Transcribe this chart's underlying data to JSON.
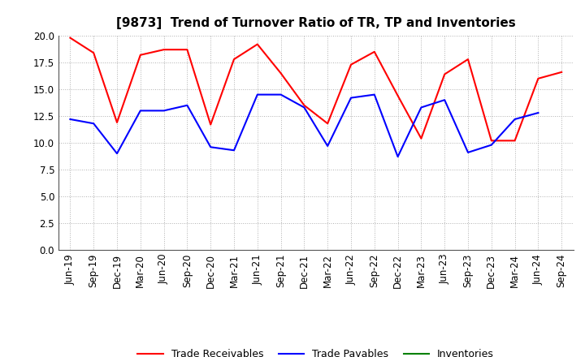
{
  "title": "[9873]  Trend of Turnover Ratio of TR, TP and Inventories",
  "x_labels": [
    "Jun-19",
    "Sep-19",
    "Dec-19",
    "Mar-20",
    "Jun-20",
    "Sep-20",
    "Dec-20",
    "Mar-21",
    "Jun-21",
    "Sep-21",
    "Dec-21",
    "Mar-22",
    "Jun-22",
    "Sep-22",
    "Dec-22",
    "Mar-23",
    "Jun-23",
    "Sep-23",
    "Dec-23",
    "Mar-24",
    "Jun-24",
    "Sep-24"
  ],
  "trade_receivables": [
    19.8,
    18.4,
    11.9,
    18.2,
    18.7,
    18.7,
    11.7,
    17.8,
    19.2,
    16.5,
    13.5,
    11.8,
    17.3,
    18.5,
    14.4,
    10.4,
    16.4,
    17.8,
    10.2,
    10.2,
    16.0,
    16.6
  ],
  "trade_payables": [
    12.2,
    11.8,
    9.0,
    13.0,
    13.0,
    13.5,
    9.6,
    9.3,
    14.5,
    14.5,
    13.3,
    9.7,
    14.2,
    14.5,
    8.7,
    13.3,
    14.0,
    9.1,
    9.8,
    12.2,
    12.8,
    null
  ],
  "inventories": [
    null,
    null,
    null,
    null,
    null,
    null,
    null,
    null,
    null,
    null,
    null,
    null,
    null,
    null,
    null,
    null,
    null,
    null,
    null,
    null,
    null,
    null
  ],
  "ylim": [
    0.0,
    20.0
  ],
  "yticks": [
    0.0,
    2.5,
    5.0,
    7.5,
    10.0,
    12.5,
    15.0,
    17.5,
    20.0
  ],
  "line_color_tr": "#FF0000",
  "line_color_tp": "#0000FF",
  "line_color_inv": "#008000",
  "background_color": "#FFFFFF",
  "grid_color": "#B0B0B0",
  "title_fontsize": 11,
  "tick_fontsize": 8.5,
  "legend_labels": [
    "Trade Receivables",
    "Trade Payables",
    "Inventories"
  ]
}
